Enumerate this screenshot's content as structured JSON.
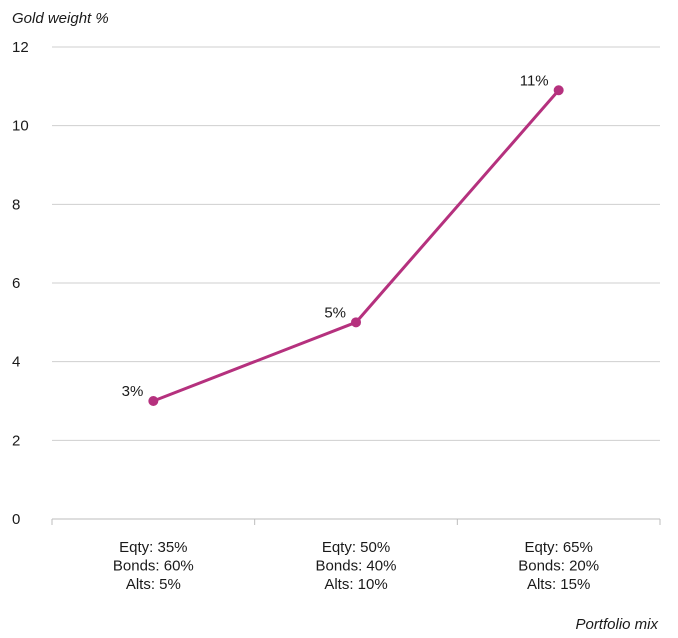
{
  "chart_data": {
    "type": "line",
    "ylabel": "Gold weight %",
    "xlabel": "Portfolio mix",
    "ylim": [
      0,
      12
    ],
    "yticks": [
      0,
      2,
      4,
      6,
      8,
      10,
      12
    ],
    "categories": [
      [
        "Eqty: 35%",
        "Bonds: 60%",
        "Alts: 5%"
      ],
      [
        "Eqty: 50%",
        "Bonds: 40%",
        "Alts: 10%"
      ],
      [
        "Eqty: 65%",
        "Bonds: 20%",
        "Alts: 15%"
      ]
    ],
    "series": [
      {
        "values": [
          3,
          5,
          10.9
        ],
        "labels": [
          "3%",
          "5%",
          "11%"
        ]
      }
    ],
    "grid": true,
    "colors": {
      "line": "#b5317e",
      "grid": "#cfcfcf",
      "axis": "#bdbdbd"
    }
  }
}
